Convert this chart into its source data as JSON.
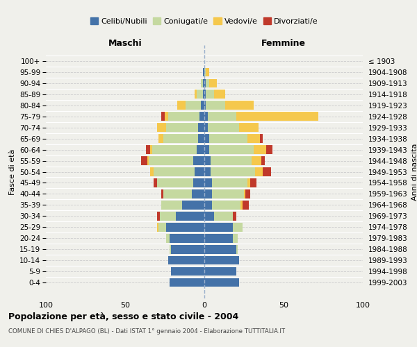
{
  "age_groups": [
    "0-4",
    "5-9",
    "10-14",
    "15-19",
    "20-24",
    "25-29",
    "30-34",
    "35-39",
    "40-44",
    "45-49",
    "50-54",
    "55-59",
    "60-64",
    "65-69",
    "70-74",
    "75-79",
    "80-84",
    "85-89",
    "90-94",
    "95-99",
    "100+"
  ],
  "birth_years": [
    "1999-2003",
    "1994-1998",
    "1989-1993",
    "1984-1988",
    "1979-1983",
    "1974-1978",
    "1969-1973",
    "1964-1968",
    "1959-1963",
    "1954-1958",
    "1949-1953",
    "1944-1948",
    "1939-1943",
    "1934-1938",
    "1929-1933",
    "1924-1928",
    "1919-1923",
    "1914-1918",
    "1909-1913",
    "1904-1908",
    "≤ 1903"
  ],
  "maschi": {
    "celibi": [
      22,
      21,
      23,
      21,
      22,
      24,
      18,
      14,
      8,
      7,
      6,
      7,
      5,
      4,
      4,
      3,
      2,
      1,
      1,
      1,
      0
    ],
    "coniugati": [
      0,
      0,
      0,
      1,
      2,
      5,
      10,
      13,
      18,
      23,
      26,
      28,
      28,
      22,
      20,
      20,
      10,
      4,
      1,
      0,
      0
    ],
    "vedovi": [
      0,
      0,
      0,
      0,
      0,
      1,
      0,
      0,
      0,
      0,
      2,
      1,
      1,
      3,
      6,
      2,
      5,
      1,
      0,
      0,
      0
    ],
    "divorziati": [
      0,
      0,
      0,
      0,
      0,
      0,
      2,
      0,
      1,
      2,
      0,
      4,
      3,
      0,
      0,
      2,
      0,
      0,
      0,
      0,
      0
    ]
  },
  "femmine": {
    "nubili": [
      22,
      20,
      22,
      20,
      18,
      18,
      6,
      5,
      5,
      5,
      4,
      4,
      3,
      3,
      2,
      2,
      1,
      1,
      1,
      0,
      0
    ],
    "coniugate": [
      0,
      0,
      0,
      1,
      3,
      6,
      12,
      18,
      20,
      22,
      28,
      26,
      28,
      24,
      20,
      18,
      12,
      5,
      2,
      1,
      0
    ],
    "vedove": [
      0,
      0,
      0,
      0,
      0,
      0,
      0,
      1,
      1,
      2,
      5,
      6,
      8,
      8,
      12,
      52,
      18,
      7,
      5,
      2,
      0
    ],
    "divorziate": [
      0,
      0,
      0,
      0,
      0,
      0,
      2,
      4,
      3,
      4,
      5,
      2,
      4,
      2,
      0,
      0,
      0,
      0,
      0,
      0,
      0
    ]
  },
  "colors": {
    "celibi_nubili": "#4472a8",
    "coniugati": "#c5d9a0",
    "vedovi": "#f5c84c",
    "divorziati": "#c0392b"
  },
  "title": "Popolazione per età, sesso e stato civile - 2004",
  "subtitle": "COMUNE DI CHIES D'ALPAGO (BL) - Dati ISTAT 1° gennaio 2004 - Elaborazione TUTTITALIA.IT",
  "xlabel_left": "Maschi",
  "xlabel_right": "Femmine",
  "ylabel_left": "Fasce di età",
  "ylabel_right": "Anni di nascita",
  "xlim": 100,
  "bg_color": "#f0f0eb",
  "grid_color": "#cccccc",
  "legend_labels": [
    "Celibi/Nubili",
    "Coniugati/e",
    "Vedovi/e",
    "Divorziati/e"
  ]
}
